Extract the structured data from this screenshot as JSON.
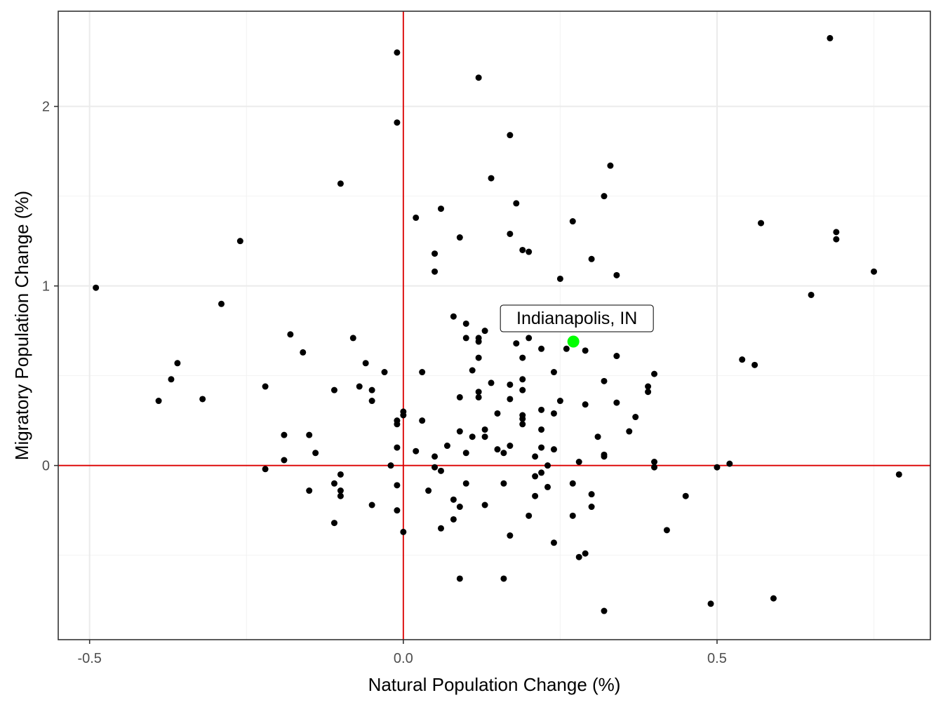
{
  "chart_data": {
    "type": "scatter",
    "title": "",
    "xlabel": "Natural Population Change (%)",
    "ylabel": "Migratory Population Change (%)",
    "xlim": [
      -0.55,
      0.84
    ],
    "ylim": [
      -0.97,
      2.53
    ],
    "x_ticks": [
      -0.5,
      0.0,
      0.5
    ],
    "x_tick_labels": [
      "-0.5",
      "0.0",
      "0.5"
    ],
    "y_ticks": [
      0,
      1,
      2
    ],
    "y_tick_labels": [
      "0",
      "1",
      "2"
    ],
    "x_minor_ticks": [
      -0.25,
      0.25,
      0.75
    ],
    "y_minor_ticks": [
      -0.5,
      0.5,
      1.5
    ],
    "grid": true,
    "reference_lines": {
      "x": 0,
      "y": 0,
      "color": "#dd0000"
    },
    "point_color": "#000000",
    "points": [
      {
        "x": -0.49,
        "y": 0.99
      },
      {
        "x": -0.39,
        "y": 0.36
      },
      {
        "x": -0.37,
        "y": 0.48
      },
      {
        "x": -0.36,
        "y": 0.57
      },
      {
        "x": -0.32,
        "y": 0.37
      },
      {
        "x": -0.29,
        "y": 0.9
      },
      {
        "x": -0.26,
        "y": 1.25
      },
      {
        "x": -0.22,
        "y": 0.44
      },
      {
        "x": -0.22,
        "y": -0.02
      },
      {
        "x": -0.19,
        "y": 0.17
      },
      {
        "x": -0.19,
        "y": 0.03
      },
      {
        "x": -0.18,
        "y": 0.73
      },
      {
        "x": -0.16,
        "y": 0.63
      },
      {
        "x": -0.15,
        "y": 0.17
      },
      {
        "x": -0.15,
        "y": -0.14
      },
      {
        "x": -0.14,
        "y": 0.07
      },
      {
        "x": -0.11,
        "y": 0.42
      },
      {
        "x": -0.11,
        "y": -0.1
      },
      {
        "x": -0.11,
        "y": -0.32
      },
      {
        "x": -0.1,
        "y": 1.57
      },
      {
        "x": -0.1,
        "y": -0.05
      },
      {
        "x": -0.1,
        "y": -0.14
      },
      {
        "x": -0.1,
        "y": -0.17
      },
      {
        "x": -0.08,
        "y": 0.71
      },
      {
        "x": -0.07,
        "y": 0.44
      },
      {
        "x": -0.06,
        "y": 0.57
      },
      {
        "x": -0.05,
        "y": 0.42
      },
      {
        "x": -0.05,
        "y": 0.36
      },
      {
        "x": -0.05,
        "y": -0.22
      },
      {
        "x": -0.03,
        "y": 0.52
      },
      {
        "x": -0.02,
        "y": 0.0
      },
      {
        "x": -0.01,
        "y": 2.3
      },
      {
        "x": -0.01,
        "y": 1.91
      },
      {
        "x": -0.01,
        "y": 0.25
      },
      {
        "x": -0.01,
        "y": 0.23
      },
      {
        "x": -0.01,
        "y": 0.1
      },
      {
        "x": -0.01,
        "y": -0.11
      },
      {
        "x": -0.01,
        "y": -0.25
      },
      {
        "x": 0.0,
        "y": 0.3
      },
      {
        "x": 0.0,
        "y": 0.28
      },
      {
        "x": 0.0,
        "y": -0.37
      },
      {
        "x": 0.02,
        "y": 1.38
      },
      {
        "x": 0.02,
        "y": 0.08
      },
      {
        "x": 0.03,
        "y": 0.52
      },
      {
        "x": 0.03,
        "y": 0.25
      },
      {
        "x": 0.04,
        "y": -0.14
      },
      {
        "x": 0.05,
        "y": 1.18
      },
      {
        "x": 0.05,
        "y": 1.08
      },
      {
        "x": 0.05,
        "y": 0.05
      },
      {
        "x": 0.05,
        "y": -0.01
      },
      {
        "x": 0.06,
        "y": 1.43
      },
      {
        "x": 0.06,
        "y": -0.03
      },
      {
        "x": 0.06,
        "y": -0.35
      },
      {
        "x": 0.07,
        "y": 0.11
      },
      {
        "x": 0.08,
        "y": 0.83
      },
      {
        "x": 0.08,
        "y": -0.19
      },
      {
        "x": 0.08,
        "y": -0.3
      },
      {
        "x": 0.09,
        "y": 1.27
      },
      {
        "x": 0.09,
        "y": 0.38
      },
      {
        "x": 0.09,
        "y": 0.19
      },
      {
        "x": 0.09,
        "y": -0.23
      },
      {
        "x": 0.09,
        "y": -0.63
      },
      {
        "x": 0.1,
        "y": 0.79
      },
      {
        "x": 0.1,
        "y": 0.71
      },
      {
        "x": 0.1,
        "y": 0.07
      },
      {
        "x": 0.1,
        "y": -0.1
      },
      {
        "x": 0.11,
        "y": 0.53
      },
      {
        "x": 0.11,
        "y": 0.16
      },
      {
        "x": 0.12,
        "y": 2.16
      },
      {
        "x": 0.12,
        "y": 0.71
      },
      {
        "x": 0.12,
        "y": 0.69
      },
      {
        "x": 0.12,
        "y": 0.6
      },
      {
        "x": 0.12,
        "y": 0.41
      },
      {
        "x": 0.12,
        "y": 0.38
      },
      {
        "x": 0.13,
        "y": 0.75
      },
      {
        "x": 0.13,
        "y": 0.2
      },
      {
        "x": 0.13,
        "y": 0.16
      },
      {
        "x": 0.13,
        "y": -0.22
      },
      {
        "x": 0.14,
        "y": 1.6
      },
      {
        "x": 0.14,
        "y": 0.46
      },
      {
        "x": 0.15,
        "y": 0.29
      },
      {
        "x": 0.15,
        "y": 0.09
      },
      {
        "x": 0.16,
        "y": 0.07
      },
      {
        "x": 0.16,
        "y": -0.1
      },
      {
        "x": 0.16,
        "y": -0.63
      },
      {
        "x": 0.17,
        "y": 1.84
      },
      {
        "x": 0.17,
        "y": 1.29
      },
      {
        "x": 0.17,
        "y": 0.45
      },
      {
        "x": 0.17,
        "y": 0.37
      },
      {
        "x": 0.17,
        "y": 0.11
      },
      {
        "x": 0.17,
        "y": -0.39
      },
      {
        "x": 0.18,
        "y": 1.46
      },
      {
        "x": 0.18,
        "y": 0.68
      },
      {
        "x": 0.19,
        "y": 1.2
      },
      {
        "x": 0.19,
        "y": 0.6
      },
      {
        "x": 0.19,
        "y": 0.48
      },
      {
        "x": 0.19,
        "y": 0.42
      },
      {
        "x": 0.19,
        "y": 0.28
      },
      {
        "x": 0.19,
        "y": 0.26
      },
      {
        "x": 0.19,
        "y": 0.23
      },
      {
        "x": 0.2,
        "y": 1.19
      },
      {
        "x": 0.2,
        "y": 0.71
      },
      {
        "x": 0.2,
        "y": -0.28
      },
      {
        "x": 0.21,
        "y": 0.05
      },
      {
        "x": 0.21,
        "y": -0.06
      },
      {
        "x": 0.21,
        "y": -0.17
      },
      {
        "x": 0.22,
        "y": 0.65
      },
      {
        "x": 0.22,
        "y": 0.31
      },
      {
        "x": 0.22,
        "y": 0.2
      },
      {
        "x": 0.22,
        "y": 0.1
      },
      {
        "x": 0.22,
        "y": -0.04
      },
      {
        "x": 0.23,
        "y": 0.0
      },
      {
        "x": 0.23,
        "y": -0.12
      },
      {
        "x": 0.24,
        "y": 0.52
      },
      {
        "x": 0.24,
        "y": 0.29
      },
      {
        "x": 0.24,
        "y": 0.09
      },
      {
        "x": 0.24,
        "y": -0.43
      },
      {
        "x": 0.25,
        "y": 1.04
      },
      {
        "x": 0.25,
        "y": 0.36
      },
      {
        "x": 0.26,
        "y": 0.65
      },
      {
        "x": 0.27,
        "y": 1.36
      },
      {
        "x": 0.27,
        "y": -0.1
      },
      {
        "x": 0.27,
        "y": -0.28
      },
      {
        "x": 0.28,
        "y": 0.02
      },
      {
        "x": 0.28,
        "y": -0.51
      },
      {
        "x": 0.29,
        "y": 0.64
      },
      {
        "x": 0.29,
        "y": 0.34
      },
      {
        "x": 0.29,
        "y": -0.49
      },
      {
        "x": 0.3,
        "y": 1.15
      },
      {
        "x": 0.3,
        "y": -0.16
      },
      {
        "x": 0.3,
        "y": -0.23
      },
      {
        "x": 0.31,
        "y": 0.16
      },
      {
        "x": 0.32,
        "y": 1.5
      },
      {
        "x": 0.32,
        "y": 0.47
      },
      {
        "x": 0.32,
        "y": 0.06
      },
      {
        "x": 0.32,
        "y": 0.05
      },
      {
        "x": 0.32,
        "y": -0.81
      },
      {
        "x": 0.33,
        "y": 1.67
      },
      {
        "x": 0.34,
        "y": 1.06
      },
      {
        "x": 0.34,
        "y": 0.61
      },
      {
        "x": 0.34,
        "y": 0.35
      },
      {
        "x": 0.36,
        "y": 0.19
      },
      {
        "x": 0.37,
        "y": 0.27
      },
      {
        "x": 0.39,
        "y": 0.44
      },
      {
        "x": 0.39,
        "y": 0.41
      },
      {
        "x": 0.4,
        "y": 0.51
      },
      {
        "x": 0.4,
        "y": 0.02
      },
      {
        "x": 0.4,
        "y": -0.01
      },
      {
        "x": 0.42,
        "y": -0.36
      },
      {
        "x": 0.45,
        "y": -0.17
      },
      {
        "x": 0.49,
        "y": -0.77
      },
      {
        "x": 0.5,
        "y": -0.01
      },
      {
        "x": 0.52,
        "y": 0.01
      },
      {
        "x": 0.54,
        "y": 0.59
      },
      {
        "x": 0.56,
        "y": 0.56
      },
      {
        "x": 0.57,
        "y": 1.35
      },
      {
        "x": 0.59,
        "y": -0.74
      },
      {
        "x": 0.65,
        "y": 0.95
      },
      {
        "x": 0.68,
        "y": 2.38
      },
      {
        "x": 0.69,
        "y": 1.3
      },
      {
        "x": 0.69,
        "y": 1.26
      },
      {
        "x": 0.75,
        "y": 1.08
      },
      {
        "x": 0.79,
        "y": -0.05
      }
    ],
    "highlight": {
      "label": "Indianapolis, IN",
      "x": 0.271,
      "y": 0.69,
      "color": "#00ff00"
    }
  }
}
